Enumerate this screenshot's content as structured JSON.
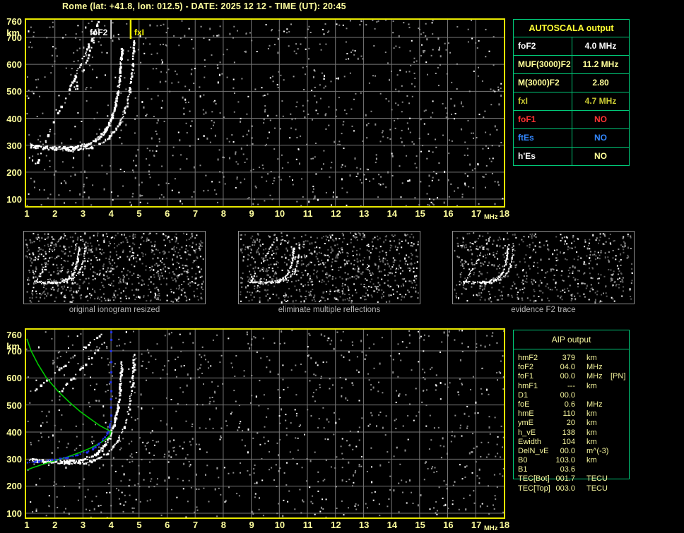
{
  "title": "Rome (lat: +41.8, lon: 012.5) - DATE: 2025 12 12 - TIME (UT): 20:45",
  "colors": {
    "background": "#000000",
    "title_text": "#ffff9e",
    "plot_border": "#e8e800",
    "grid": "#787878",
    "axis_label": "#ffff9e",
    "table_border": "#00c878",
    "autoscala_header": "#ffff33",
    "white": "#ffffff",
    "pale_yellow": "#ffff99",
    "gold": "#cccc33",
    "red": "#ff3333",
    "blue": "#3388ff",
    "profile_green": "#00c800",
    "trace_blue": "#2233ee",
    "caption_gray": "#b4b4b4",
    "fxI_marker": "#f0f000"
  },
  "axes": {
    "x_ticks": [
      "1",
      "2",
      "3",
      "4",
      "5",
      "6",
      "7",
      "8",
      "9",
      "10",
      "11",
      "12",
      "13",
      "14",
      "15",
      "16",
      "17",
      "18"
    ],
    "x_unit": "MHz",
    "y_ticks": [
      "760",
      "700",
      "600",
      "500",
      "400",
      "300",
      "200",
      "100"
    ],
    "y_unit": "km"
  },
  "top_plot": {
    "foF2_label": "foF2",
    "fxI_label": "fxI",
    "foF2_freq_mhz": 4.0,
    "fxI_freq_mhz": 4.7
  },
  "autoscala": {
    "header": "AUTOSCALA output",
    "rows": [
      {
        "label": "foF2",
        "value": "4.0 MHz",
        "label_color": "#ffffff",
        "value_color": "#ffffff"
      },
      {
        "label": "MUF(3000)F2",
        "value": "11.2 MHz",
        "label_color": "#ffff99",
        "value_color": "#ffff99"
      },
      {
        "label": "M(3000)F2",
        "value": "2.80",
        "label_color": "#ffff99",
        "value_color": "#ffff99"
      },
      {
        "label": "fxI",
        "value": "4.7 MHz",
        "label_color": "#cccc33",
        "value_color": "#cccc33"
      },
      {
        "label": "foF1",
        "value": "NO",
        "label_color": "#ff3333",
        "value_color": "#ff3333"
      },
      {
        "label": "ftEs",
        "value": "NO",
        "label_color": "#3388ff",
        "value_color": "#3388ff"
      },
      {
        "label": "h'Es",
        "value": "NO",
        "label_color": "#ffffff",
        "value_color": "#ffff99"
      }
    ]
  },
  "thumbnails": [
    {
      "caption": "original ionogram resized"
    },
    {
      "caption": "eliminate multiple reflections"
    },
    {
      "caption": "evidence F2 trace"
    }
  ],
  "aip": {
    "header": "AIP output",
    "rows": [
      {
        "label": "hmF2",
        "value": "379",
        "unit": "km",
        "note": ""
      },
      {
        "label": "foF2",
        "value": "04.0",
        "unit": "MHz",
        "note": ""
      },
      {
        "label": "foF1",
        "value": "00.0",
        "unit": "MHz",
        "note": "[PN]"
      },
      {
        "label": "hmF1",
        "value": "---",
        "unit": "km",
        "note": ""
      },
      {
        "label": "D1",
        "value": "00.0",
        "unit": "",
        "note": ""
      },
      {
        "label": "foE",
        "value": "0.6",
        "unit": "MHz",
        "note": ""
      },
      {
        "label": "hmE",
        "value": "110",
        "unit": "km",
        "note": ""
      },
      {
        "label": "ymE",
        "value": "20",
        "unit": "km",
        "note": ""
      },
      {
        "label": "h_vE",
        "value": "138",
        "unit": "km",
        "note": ""
      },
      {
        "label": "Ewidth",
        "value": "104",
        "unit": "km",
        "note": ""
      },
      {
        "label": "DelN_vE",
        "value": "00.0",
        "unit": "m^(-3)",
        "note": ""
      },
      {
        "label": "B0",
        "value": "103.0",
        "unit": "km",
        "note": ""
      },
      {
        "label": "B1",
        "value": "03.6",
        "unit": "",
        "note": ""
      },
      {
        "label": "TEC[Bot]",
        "value": "001.7",
        "unit": "TECU",
        "note": ""
      },
      {
        "label": "TEC[Top]",
        "value": "003.0",
        "unit": "TECU",
        "note": ""
      }
    ]
  },
  "traces": {
    "o_branch": [
      [
        1.1,
        302
      ],
      [
        1.5,
        298
      ],
      [
        1.9,
        295
      ],
      [
        2.3,
        294
      ],
      [
        2.7,
        297
      ],
      [
        3.0,
        304
      ],
      [
        3.3,
        316
      ],
      [
        3.55,
        333
      ],
      [
        3.75,
        355
      ],
      [
        3.9,
        382
      ],
      [
        4.03,
        415
      ],
      [
        4.13,
        452
      ],
      [
        4.21,
        495
      ],
      [
        4.27,
        540
      ],
      [
        4.31,
        585
      ],
      [
        4.34,
        630
      ],
      [
        4.36,
        660
      ]
    ],
    "x_branch": [
      [
        2.2,
        290
      ],
      [
        2.6,
        286
      ],
      [
        3.0,
        288
      ],
      [
        3.3,
        295
      ],
      [
        3.6,
        308
      ],
      [
        3.85,
        326
      ],
      [
        4.08,
        350
      ],
      [
        4.28,
        382
      ],
      [
        4.44,
        420
      ],
      [
        4.56,
        462
      ],
      [
        4.65,
        508
      ],
      [
        4.71,
        555
      ],
      [
        4.75,
        600
      ],
      [
        4.78,
        648
      ],
      [
        4.8,
        695
      ]
    ],
    "multiple_top_1": [
      [
        1.3,
        235
      ],
      [
        3.55,
        760
      ]
    ],
    "multiple_top_2": [
      [
        2.7,
        500
      ],
      [
        3.4,
        700
      ]
    ],
    "multiple_bottom_1": [
      [
        1.25,
        555
      ],
      [
        3.6,
        765
      ]
    ],
    "multiple_bottom_2": [
      [
        2.1,
        545
      ],
      [
        3.8,
        740
      ]
    ],
    "multiple_thumb": [
      [
        1.15,
        295
      ],
      [
        3.1,
        775
      ]
    ],
    "green_profile": [
      [
        1.0,
        745
      ],
      [
        1.15,
        700
      ],
      [
        1.4,
        650
      ],
      [
        1.7,
        600
      ],
      [
        2.1,
        552
      ],
      [
        2.5,
        512
      ],
      [
        2.9,
        476
      ],
      [
        3.3,
        446
      ],
      [
        3.6,
        424
      ],
      [
        3.85,
        410
      ],
      [
        4.0,
        402
      ],
      [
        3.95,
        385
      ],
      [
        3.8,
        372
      ],
      [
        3.55,
        356
      ],
      [
        3.25,
        340
      ],
      [
        2.85,
        323
      ],
      [
        2.45,
        308
      ],
      [
        2.0,
        294
      ],
      [
        1.55,
        280
      ],
      [
        1.2,
        268
      ],
      [
        1.0,
        260
      ]
    ],
    "blue_curve": [
      [
        1.0,
        288
      ],
      [
        1.4,
        296
      ],
      [
        1.9,
        300
      ],
      [
        2.4,
        308
      ],
      [
        2.8,
        318
      ],
      [
        3.1,
        330
      ],
      [
        3.35,
        344
      ],
      [
        3.55,
        360
      ],
      [
        3.72,
        378
      ],
      [
        3.85,
        398
      ],
      [
        3.93,
        420
      ],
      [
        3.98,
        445
      ]
    ],
    "blue_dots": [
      [
        4.0,
        462
      ],
      [
        3.99,
        492
      ],
      [
        3.99,
        522
      ],
      [
        4.0,
        552
      ],
      [
        3.98,
        585
      ],
      [
        4.0,
        622
      ],
      [
        4.0,
        660
      ],
      [
        3.99,
        700
      ],
      [
        4.0,
        742
      ],
      [
        4.0,
        770
      ]
    ]
  }
}
